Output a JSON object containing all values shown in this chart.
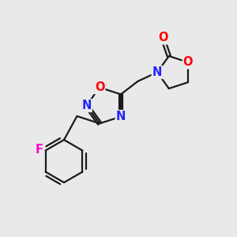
{
  "background_color": "#e9e9e9",
  "bond_color": "#1a1a1a",
  "atom_colors": {
    "O": "#ff0000",
    "N": "#2222ff",
    "F": "#ff00cc",
    "C": "#1a1a1a"
  },
  "font_size": 10.5
}
